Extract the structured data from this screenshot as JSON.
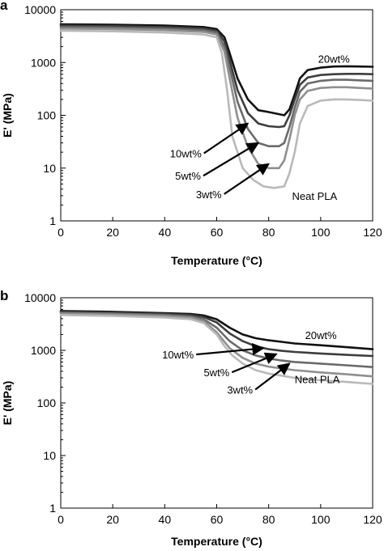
{
  "chart_data": [
    {
      "panel": "a",
      "type": "line",
      "xlabel": "Temperature (°C)",
      "ylabel": "E' (MPa)",
      "xlim": [
        0,
        120
      ],
      "ylim": [
        1,
        10000
      ],
      "yscale": "log",
      "xticks": [
        "0",
        "20",
        "40",
        "60",
        "80",
        "100",
        "120"
      ],
      "yticks": [
        "1",
        "10",
        "100",
        "1000",
        "10000"
      ],
      "series": [
        {
          "name": "20wt%",
          "color": "#111111",
          "x": [
            0,
            20,
            40,
            55,
            60,
            63,
            65,
            68,
            72,
            76,
            80,
            84,
            86,
            88,
            90,
            92,
            95,
            100,
            105,
            110,
            115,
            120
          ],
          "y": [
            5300,
            5200,
            5000,
            4700,
            4300,
            3000,
            1500,
            500,
            200,
            125,
            115,
            105,
            100,
            130,
            250,
            500,
            720,
            800,
            840,
            850,
            840,
            830
          ]
        },
        {
          "name": "10wt%",
          "color": "#3d3d3d",
          "x": [
            0,
            20,
            40,
            55,
            60,
            63,
            65,
            68,
            72,
            76,
            80,
            84,
            86,
            88,
            90,
            92,
            95,
            100,
            105,
            110,
            115,
            120
          ],
          "y": [
            5000,
            4900,
            4700,
            4400,
            4000,
            2500,
            1100,
            300,
            110,
            70,
            62,
            60,
            62,
            100,
            200,
            380,
            520,
            580,
            600,
            610,
            610,
            600
          ]
        },
        {
          "name": "5wt%",
          "color": "#6a6a6a",
          "x": [
            0,
            20,
            40,
            55,
            60,
            63,
            65,
            68,
            72,
            76,
            80,
            84,
            86,
            88,
            90,
            92,
            95,
            100,
            105,
            110,
            115,
            120
          ],
          "y": [
            4700,
            4600,
            4400,
            4100,
            3700,
            2000,
            800,
            180,
            55,
            30,
            26,
            26,
            30,
            60,
            140,
            280,
            400,
            450,
            470,
            470,
            460,
            450
          ]
        },
        {
          "name": "3wt%",
          "color": "#8f8f8f",
          "x": [
            0,
            20,
            40,
            55,
            60,
            63,
            65,
            68,
            72,
            76,
            80,
            84,
            86,
            88,
            90,
            92,
            95,
            100,
            105,
            110,
            115,
            120
          ],
          "y": [
            4400,
            4300,
            4100,
            3800,
            3400,
            1600,
            500,
            90,
            25,
            12,
            10,
            10,
            14,
            35,
            100,
            200,
            290,
            330,
            340,
            340,
            330,
            320
          ]
        },
        {
          "name": "Neat PLA",
          "color": "#b9b9b9",
          "x": [
            0,
            20,
            40,
            55,
            60,
            62,
            64,
            66,
            70,
            74,
            78,
            82,
            86,
            88,
            90,
            92,
            95,
            100,
            105,
            110,
            115,
            120
          ],
          "y": [
            4000,
            3900,
            3700,
            3400,
            3000,
            1500,
            300,
            40,
            10,
            6,
            4.5,
            4.2,
            4.5,
            8,
            20,
            70,
            150,
            190,
            200,
            200,
            195,
            190
          ]
        }
      ],
      "annotations": [
        {
          "text": "20wt%",
          "x": 99,
          "y": 1000
        },
        {
          "text": "10wt%",
          "x": 42,
          "y": 16,
          "arrow_to": [
            72,
            70
          ]
        },
        {
          "text": "5wt%",
          "x": 44,
          "y": 6,
          "arrow_to": [
            76,
            30
          ]
        },
        {
          "text": "3wt%",
          "x": 52,
          "y": 2.7,
          "arrow_to": [
            80,
            12
          ]
        },
        {
          "text": "Neat PLA",
          "x": 89,
          "y": 2.5
        }
      ]
    },
    {
      "panel": "b",
      "type": "line",
      "xlabel": "Temperature (°C)",
      "ylabel": "E' (MPa)",
      "xlim": [
        0,
        120
      ],
      "ylim": [
        1,
        10000
      ],
      "yscale": "log",
      "xticks": [
        "0",
        "20",
        "40",
        "60",
        "80",
        "100",
        "120"
      ],
      "yticks": [
        "1",
        "10",
        "100",
        "1000",
        "10000"
      ],
      "series": [
        {
          "name": "20wt%",
          "color": "#111111",
          "x": [
            0,
            20,
            40,
            50,
            55,
            60,
            65,
            70,
            75,
            80,
            85,
            90,
            100,
            110,
            120
          ],
          "y": [
            5600,
            5400,
            5100,
            4900,
            4600,
            3900,
            2700,
            2000,
            1700,
            1550,
            1450,
            1350,
            1250,
            1150,
            1050
          ]
        },
        {
          "name": "10wt%",
          "color": "#3d3d3d",
          "x": [
            0,
            20,
            40,
            50,
            55,
            60,
            65,
            70,
            75,
            80,
            85,
            90,
            100,
            110,
            120
          ],
          "y": [
            5400,
            5200,
            4900,
            4700,
            4300,
            3400,
            2100,
            1500,
            1200,
            1050,
            980,
            930,
            870,
            820,
            780
          ]
        },
        {
          "name": "5wt%",
          "color": "#6a6a6a",
          "x": [
            0,
            20,
            40,
            50,
            55,
            60,
            65,
            70,
            75,
            80,
            85,
            90,
            100,
            110,
            120
          ],
          "y": [
            5200,
            5000,
            4700,
            4400,
            3900,
            2700,
            1500,
            1000,
            800,
            700,
            640,
            600,
            560,
            520,
            480
          ]
        },
        {
          "name": "3wt%",
          "color": "#8f8f8f",
          "x": [
            0,
            20,
            40,
            50,
            55,
            60,
            65,
            70,
            75,
            80,
            85,
            90,
            100,
            110,
            120
          ],
          "y": [
            5000,
            4800,
            4500,
            4200,
            3600,
            2200,
            1100,
            720,
            560,
            490,
            450,
            420,
            380,
            350,
            320
          ]
        },
        {
          "name": "Neat PLA",
          "color": "#b9b9b9",
          "x": [
            0,
            20,
            40,
            50,
            55,
            60,
            63,
            66,
            70,
            75,
            80,
            85,
            90,
            100,
            110,
            120
          ],
          "y": [
            4700,
            4500,
            4200,
            3900,
            3300,
            2000,
            1200,
            800,
            560,
            420,
            360,
            330,
            300,
            270,
            250,
            230
          ]
        }
      ],
      "annotations": [
        {
          "text": "20wt%",
          "x": 94,
          "y": 1650
        },
        {
          "text": "10wt%",
          "x": 39,
          "y": 700,
          "arrow_to": [
            78,
            1100
          ]
        },
        {
          "text": "5wt%",
          "x": 55,
          "y": 320,
          "arrow_to": [
            83,
            850
          ]
        },
        {
          "text": "3wt%",
          "x": 64,
          "y": 150,
          "arrow_to": [
            88,
            560
          ]
        },
        {
          "text": "Neat PLA",
          "x": 90,
          "y": 240
        }
      ]
    }
  ]
}
